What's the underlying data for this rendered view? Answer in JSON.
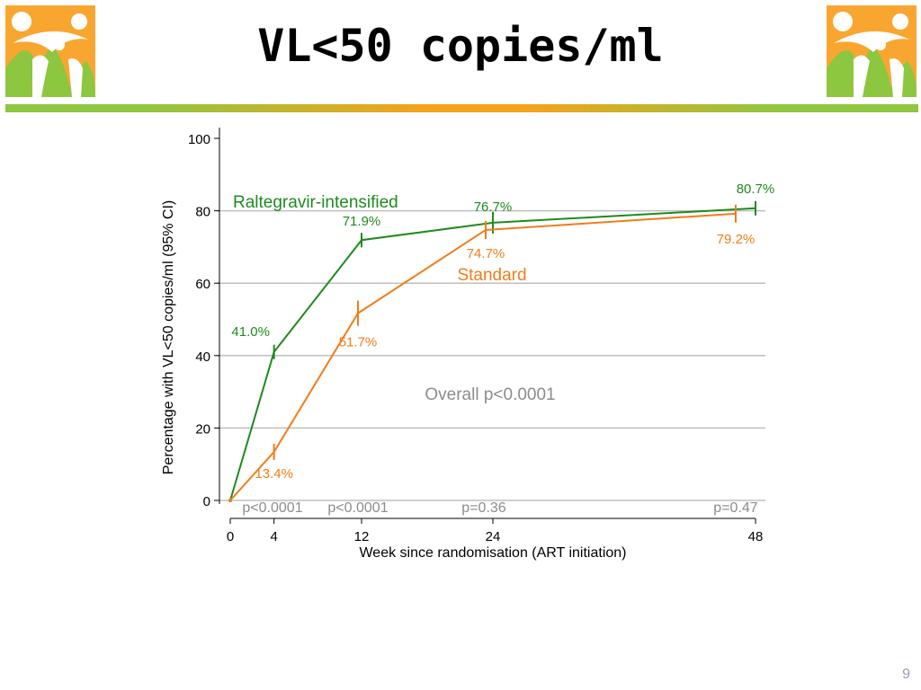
{
  "slide": {
    "title": "VL<50 copies/ml",
    "page_number": "9"
  },
  "colors": {
    "raltegravir": "#1e8a1e",
    "standard": "#f07d1a",
    "grid": "#bfbfbf",
    "annotation": "#8c8c8c",
    "logo_orange": "#f9a630",
    "logo_green": "#8dc63f"
  },
  "chart_data": {
    "type": "line",
    "xlabel": "Week since randomisation (ART initiation)",
    "ylabel": "Percentage with VL<50 copies/ml (95% CI)",
    "xlim": [
      0,
      48
    ],
    "ylim": [
      0,
      100
    ],
    "xticks": [
      0,
      4,
      12,
      24,
      48
    ],
    "yticks": [
      0,
      20,
      40,
      60,
      80,
      100
    ],
    "grid": true,
    "series": [
      {
        "name": "Raltegravir-intensified",
        "x": [
          0,
          4,
          12,
          24,
          48
        ],
        "y": [
          0,
          41.0,
          71.9,
          76.7,
          80.7
        ],
        "labels": [
          "",
          "41.0%",
          "71.9%",
          "76.7%",
          "80.7%"
        ]
      },
      {
        "name": "Standard",
        "x": [
          0,
          4,
          12,
          24,
          48
        ],
        "y": [
          0,
          13.4,
          51.7,
          74.7,
          79.2
        ],
        "labels": [
          "",
          "13.4%",
          "51.7%",
          "74.7%",
          "79.2%"
        ]
      }
    ],
    "annotations": {
      "overall_p": "Overall p<0.0001",
      "pvalues": [
        "p<0.0001",
        "p<0.0001",
        "p=0.36",
        "p=0.47"
      ]
    }
  }
}
